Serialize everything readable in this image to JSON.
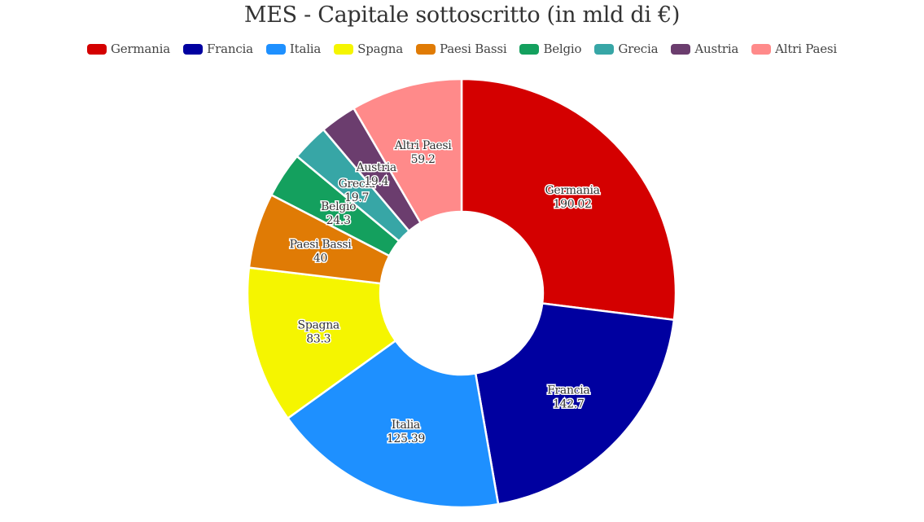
{
  "title": "MES - Capitale sottoscritto (in mld di €)",
  "legend": [
    {
      "label": "Germania",
      "color": "#d40000"
    },
    {
      "label": "Francia",
      "color": "#0000a0"
    },
    {
      "label": "Italia",
      "color": "#1e90ff"
    },
    {
      "label": "Spagna",
      "color": "#f5f500"
    },
    {
      "label": "Paesi Bassi",
      "color": "#e07b05"
    },
    {
      "label": "Belgio",
      "color": "#14a05e"
    },
    {
      "label": "Grecia",
      "color": "#37a6a6"
    },
    {
      "label": "Austria",
      "color": "#6b3d6e"
    },
    {
      "label": "Altri Paesi",
      "color": "#ff8a8a"
    }
  ],
  "chart_data": {
    "type": "pie",
    "variant": "donut",
    "title": "MES - Capitale sottoscritto (in mld di €)",
    "categories": [
      "Germania",
      "Francia",
      "Italia",
      "Spagna",
      "Paesi Bassi",
      "Belgio",
      "Grecia",
      "Austria",
      "Altri Paesi"
    ],
    "values": [
      190.02,
      142.7,
      125.39,
      83.3,
      40,
      24.3,
      19.7,
      19.4,
      59.2
    ],
    "value_labels": [
      "190.02",
      "142.7",
      "125.39",
      "83.3",
      "40",
      "24.3",
      "19.7",
      "19.4",
      "59.2"
    ],
    "colors": [
      "#d40000",
      "#0000a0",
      "#1e90ff",
      "#f5f500",
      "#e07b05",
      "#14a05e",
      "#37a6a6",
      "#6b3d6e",
      "#ff8a8a"
    ],
    "legend_position": "top",
    "start_angle_deg": 0,
    "direction": "clockwise",
    "inner_radius_ratio": 0.38,
    "center": [
      567,
      360
    ],
    "outer_radius": 263
  }
}
